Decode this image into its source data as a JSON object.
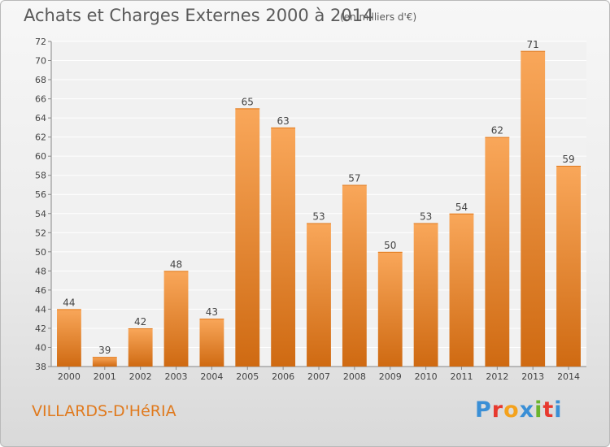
{
  "header": {
    "title": "Achats et Charges Externes 2000 à 2014",
    "subtitle": "(en milliers d'€)"
  },
  "footer": {
    "commune": "VILLARDS-D'HéRIA",
    "logo_letters": [
      "P",
      "r",
      "o",
      "x",
      "i",
      "t",
      "i"
    ],
    "logo_colors": [
      "#3a8fd6",
      "#e7392e",
      "#f4a21d",
      "#3a8fd6",
      "#6ab42d",
      "#e7392e",
      "#3a8fd6"
    ]
  },
  "chart_data": {
    "type": "bar",
    "title": "Achats et Charges Externes 2000 à 2014",
    "subtitle": "(en milliers d'€)",
    "categories": [
      "2000",
      "2001",
      "2002",
      "2003",
      "2004",
      "2005",
      "2006",
      "2007",
      "2008",
      "2009",
      "2010",
      "2011",
      "2012",
      "2013",
      "2014"
    ],
    "values": [
      44,
      39,
      42,
      48,
      43,
      65,
      63,
      53,
      57,
      50,
      53,
      54,
      62,
      71,
      59
    ],
    "ylim": [
      38,
      72
    ],
    "yticks": [
      38,
      40,
      42,
      44,
      46,
      48,
      50,
      52,
      54,
      56,
      58,
      60,
      62,
      64,
      66,
      68,
      70,
      72
    ],
    "grid": true,
    "bar_color_top": "#f9a75a",
    "bar_color_bottom": "#cf6a12"
  }
}
